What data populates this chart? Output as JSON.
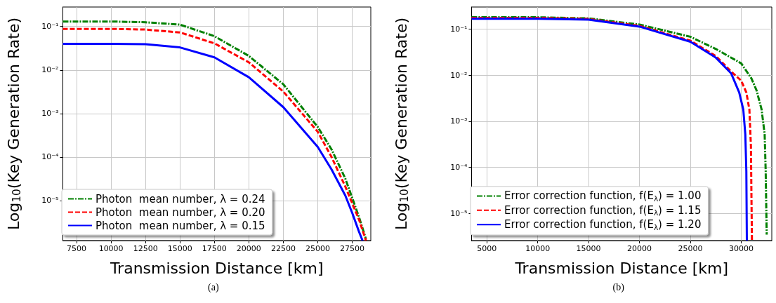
{
  "chart_data": [
    {
      "type": "line",
      "xlabel": "Transmission Distance [km]",
      "ylabel": "Log$_{10}$(Key Generation Rate)",
      "log": "y",
      "grid": true,
      "legend": "bottom left",
      "marker": "none",
      "xlim": [
        6500,
        28850
      ],
      "xticks": [
        7500,
        10000,
        12500,
        15000,
        17500,
        20000,
        22500,
        25000,
        27500
      ],
      "ylim": [
        1.2e-06,
        0.28
      ],
      "yticks": [
        {
          "value": 0.1,
          "label": "10⁻¹"
        },
        {
          "value": 0.01,
          "label": "10⁻²"
        },
        {
          "value": 0.001,
          "label": "10⁻³"
        },
        {
          "value": 0.0001,
          "label": "10⁻⁴"
        },
        {
          "value": 1e-05,
          "label": "10⁻⁵"
        }
      ],
      "annotations": [
        "(a)"
      ],
      "series": [
        {
          "name": "Photon  mean number, λ = 0.24",
          "color": "#008000",
          "line_style": "dashdot",
          "x": [
            6500,
            10000,
            12500,
            15000,
            17500,
            20000,
            22500,
            25000,
            26000,
            27000,
            27500,
            28000,
            28500
          ],
          "values": [
            0.13,
            0.13,
            0.125,
            0.11,
            0.06,
            0.021,
            0.0047,
            0.00049,
            0.00015,
            3.2e-05,
            1.15e-05,
            4.1e-06,
            1.3e-06
          ]
        },
        {
          "name": "Photon  mean number, λ = 0.20",
          "color": "#ff0000",
          "line_style": "dashed",
          "x": [
            6500,
            10000,
            12500,
            15000,
            17500,
            20000,
            22500,
            25000,
            26000,
            27000,
            28000,
            28500
          ],
          "values": [
            0.088,
            0.088,
            0.085,
            0.073,
            0.041,
            0.015,
            0.0032,
            0.00038,
            0.0001,
            2.1e-05,
            3.6e-06,
            1.2e-06
          ]
        },
        {
          "name": "Photon  mean number, λ = 0.15",
          "color": "#0000ff",
          "line_style": "solid",
          "x": [
            6500,
            10000,
            12500,
            15000,
            17500,
            20000,
            22500,
            25000,
            26000,
            27000,
            27500,
            28000,
            28250
          ],
          "values": [
            0.04,
            0.04,
            0.039,
            0.033,
            0.0195,
            0.0068,
            0.0014,
            0.00017,
            5.2e-05,
            1.3e-05,
            5.2e-06,
            1.9e-06,
            1.2e-06
          ]
        }
      ]
    },
    {
      "type": "line",
      "xlabel": "Transmission Distance [km]",
      "ylabel": "Log$_{10}$(Key Generation Rate)",
      "log": "y",
      "grid": true,
      "legend": "bottom left",
      "marker": "none",
      "xlim": [
        3500,
        33000
      ],
      "xticks": [
        5000,
        10000,
        15000,
        20000,
        25000,
        30000
      ],
      "ylim": [
        2.6e-06,
        0.3
      ],
      "yticks": [
        {
          "value": 0.1,
          "label": "10⁻¹"
        },
        {
          "value": 0.01,
          "label": "10⁻²"
        },
        {
          "value": 0.001,
          "label": "10⁻³"
        },
        {
          "value": 0.0001,
          "label": "10⁻⁴"
        },
        {
          "value": 1e-05,
          "label": "10⁻⁵"
        }
      ],
      "annotations": [
        "(b)"
      ],
      "series": [
        {
          "name": "Error correction function, f(E$_{λ}$) = 1.00",
          "color": "#008000",
          "line_style": "dashdot",
          "x": [
            3500,
            10000,
            15000,
            20000,
            25000,
            27500,
            30000,
            31000,
            31500,
            32000,
            32300,
            32400,
            32500
          ],
          "values": [
            0.18,
            0.18,
            0.17,
            0.125,
            0.068,
            0.037,
            0.018,
            0.0085,
            0.0047,
            0.0018,
            0.00052,
            8.3e-05,
            3.5e-06
          ]
        },
        {
          "name": "Error correction function, f(E$_{λ}$) = 1.15",
          "color": "#ff0000",
          "line_style": "dashed",
          "x": [
            3500,
            10000,
            15000,
            20000,
            25000,
            27500,
            29000,
            30000,
            30500,
            30800,
            30950,
            31000,
            31050
          ],
          "values": [
            0.175,
            0.175,
            0.165,
            0.117,
            0.056,
            0.026,
            0.012,
            0.0076,
            0.0042,
            0.0018,
            0.00029,
            2.5e-05,
            2.6e-06
          ]
        },
        {
          "name": "Error correction function, f(E$_{λ}$) = 1.20",
          "color": "#0000ff",
          "line_style": "solid",
          "x": [
            3500,
            10000,
            15000,
            20000,
            25000,
            27500,
            29000,
            29800,
            30200,
            30400,
            30500,
            30550
          ],
          "values": [
            0.167,
            0.167,
            0.16,
            0.113,
            0.053,
            0.024,
            0.011,
            0.0042,
            0.0018,
            0.00052,
            8.3e-05,
            2.6e-06
          ]
        }
      ]
    }
  ]
}
